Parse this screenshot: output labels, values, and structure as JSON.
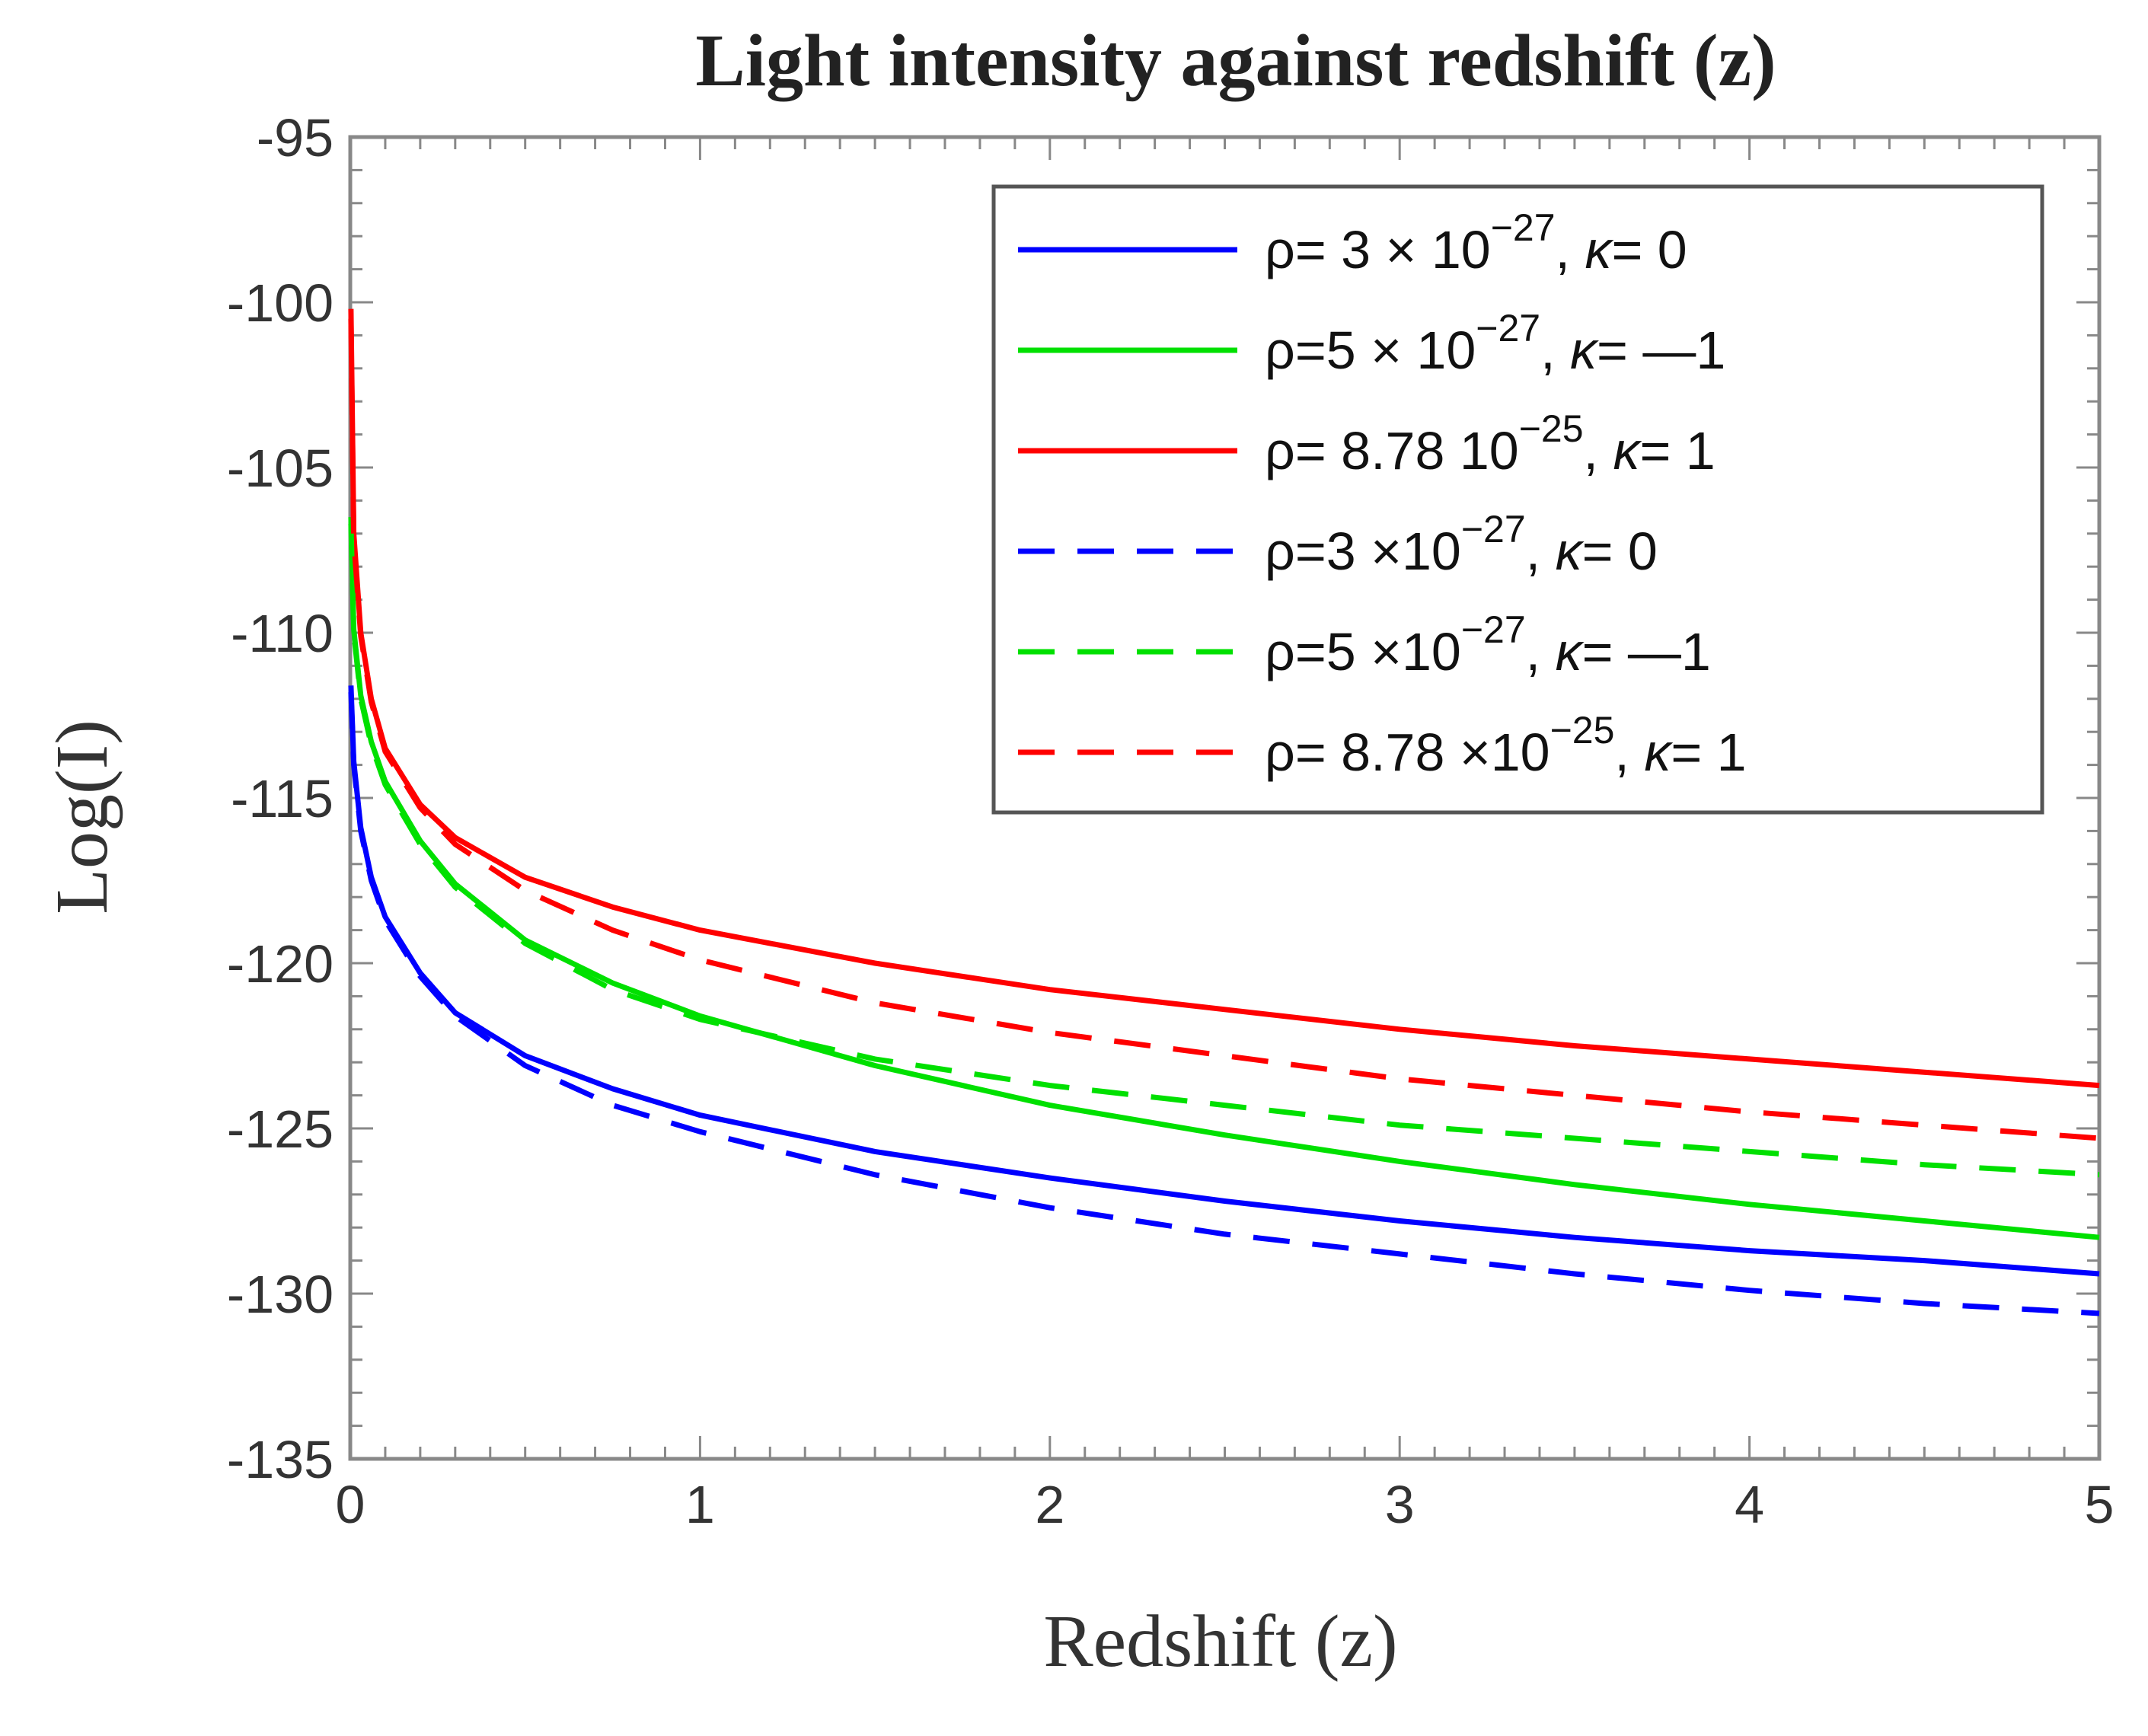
{
  "chart_data": {
    "type": "line",
    "title": "Light  intensity  against  redshift  (z)",
    "xlabel": "Redshift  (z)",
    "ylabel": "Log(I)",
    "xlim": [
      0,
      5
    ],
    "ylim": [
      -135,
      -95
    ],
    "xticks": [
      0,
      1,
      2,
      3,
      4,
      5
    ],
    "yticks": [
      -95,
      -100,
      -105,
      -110,
      -115,
      -120,
      -125,
      -130,
      -135
    ],
    "grid": false,
    "legend_position": "top-right",
    "series": [
      {
        "name_parts": {
          "pre": "ρ= 3 × 10",
          "exp": "−27",
          "post": ", ",
          "sym": "κ",
          "tail": "= 0"
        },
        "color": "#0000ff",
        "style": "solid",
        "points": [
          [
            0.002,
            -111.6
          ],
          [
            0.01,
            -113.9
          ],
          [
            0.03,
            -115.9
          ],
          [
            0.06,
            -117.4
          ],
          [
            0.1,
            -118.6
          ],
          [
            0.2,
            -120.3
          ],
          [
            0.3,
            -121.5
          ],
          [
            0.5,
            -122.8
          ],
          [
            0.75,
            -123.8
          ],
          [
            1.0,
            -124.6
          ],
          [
            1.5,
            -125.7
          ],
          [
            2.0,
            -126.5
          ],
          [
            2.5,
            -127.2
          ],
          [
            3.0,
            -127.8
          ],
          [
            3.5,
            -128.3
          ],
          [
            4.0,
            -128.7
          ],
          [
            4.5,
            -129.0
          ],
          [
            5.0,
            -129.4
          ]
        ]
      },
      {
        "name_parts": {
          "pre": "ρ=5 × 10",
          "exp": "−27",
          "post": ", ",
          "sym": "κ",
          "tail": "= —1"
        },
        "color": "#00e000",
        "style": "solid",
        "points": [
          [
            0.002,
            -106.5
          ],
          [
            0.01,
            -109.9
          ],
          [
            0.03,
            -111.9
          ],
          [
            0.06,
            -113.3
          ],
          [
            0.1,
            -114.5
          ],
          [
            0.2,
            -116.3
          ],
          [
            0.3,
            -117.6
          ],
          [
            0.5,
            -119.3
          ],
          [
            0.75,
            -120.6
          ],
          [
            1.0,
            -121.6
          ],
          [
            1.5,
            -123.1
          ],
          [
            2.0,
            -124.3
          ],
          [
            2.5,
            -125.2
          ],
          [
            3.0,
            -126.0
          ],
          [
            3.5,
            -126.7
          ],
          [
            4.0,
            -127.3
          ],
          [
            4.5,
            -127.8
          ],
          [
            5.0,
            -128.3
          ]
        ]
      },
      {
        "name_parts": {
          "pre": "ρ= 8.78 10",
          "exp": "−25",
          "post": ", ",
          "sym": "κ",
          "tail": "= 1"
        },
        "color": "#ff0000",
        "style": "solid",
        "points": [
          [
            0.002,
            -100.2
          ],
          [
            0.01,
            -107.0
          ],
          [
            0.03,
            -110.0
          ],
          [
            0.06,
            -112.0
          ],
          [
            0.1,
            -113.5
          ],
          [
            0.2,
            -115.2
          ],
          [
            0.3,
            -116.2
          ],
          [
            0.5,
            -117.4
          ],
          [
            0.75,
            -118.3
          ],
          [
            1.0,
            -119.0
          ],
          [
            1.5,
            -120.0
          ],
          [
            2.0,
            -120.8
          ],
          [
            2.5,
            -121.4
          ],
          [
            3.0,
            -122.0
          ],
          [
            3.5,
            -122.5
          ],
          [
            4.0,
            -122.9
          ],
          [
            4.5,
            -123.3
          ],
          [
            5.0,
            -123.7
          ]
        ]
      },
      {
        "name_parts": {
          "pre": "ρ=3 ×10",
          "exp": "−27",
          "post": ", ",
          "sym": "κ",
          "tail": "= 0"
        },
        "color": "#0000ff",
        "style": "dashed",
        "points": [
          [
            0.002,
            -111.8
          ],
          [
            0.01,
            -114.0
          ],
          [
            0.03,
            -116.0
          ],
          [
            0.06,
            -117.5
          ],
          [
            0.1,
            -118.7
          ],
          [
            0.2,
            -120.4
          ],
          [
            0.3,
            -121.6
          ],
          [
            0.5,
            -123.1
          ],
          [
            0.75,
            -124.3
          ],
          [
            1.0,
            -125.1
          ],
          [
            1.5,
            -126.4
          ],
          [
            2.0,
            -127.4
          ],
          [
            2.5,
            -128.2
          ],
          [
            3.0,
            -128.8
          ],
          [
            3.5,
            -129.4
          ],
          [
            4.0,
            -129.9
          ],
          [
            4.5,
            -130.3
          ],
          [
            5.0,
            -130.6
          ]
        ]
      },
      {
        "name_parts": {
          "pre": "ρ=5 ×10",
          "exp": "−27",
          "post": ", ",
          "sym": "κ",
          "tail": "= —1"
        },
        "color": "#00e000",
        "style": "dashed",
        "points": [
          [
            0.002,
            -106.7
          ],
          [
            0.01,
            -110.0
          ],
          [
            0.03,
            -112.0
          ],
          [
            0.06,
            -113.4
          ],
          [
            0.1,
            -114.6
          ],
          [
            0.2,
            -116.4
          ],
          [
            0.3,
            -117.7
          ],
          [
            0.5,
            -119.4
          ],
          [
            0.75,
            -120.8
          ],
          [
            1.0,
            -121.7
          ],
          [
            1.5,
            -122.9
          ],
          [
            2.0,
            -123.7
          ],
          [
            2.5,
            -124.3
          ],
          [
            3.0,
            -124.9
          ],
          [
            3.5,
            -125.3
          ],
          [
            4.0,
            -125.7
          ],
          [
            4.5,
            -126.1
          ],
          [
            5.0,
            -126.4
          ]
        ]
      },
      {
        "name_parts": {
          "pre": "ρ= 8.78 ×10",
          "exp": "−25",
          "post": ", ",
          "sym": "κ",
          "tail": "= 1"
        },
        "color": "#ff0000",
        "style": "dashed",
        "points": [
          [
            0.002,
            -100.5
          ],
          [
            0.01,
            -107.2
          ],
          [
            0.03,
            -110.1
          ],
          [
            0.06,
            -112.1
          ],
          [
            0.1,
            -113.6
          ],
          [
            0.2,
            -115.3
          ],
          [
            0.3,
            -116.4
          ],
          [
            0.5,
            -117.8
          ],
          [
            0.75,
            -119.0
          ],
          [
            1.0,
            -119.9
          ],
          [
            1.5,
            -121.2
          ],
          [
            2.0,
            -122.1
          ],
          [
            2.5,
            -122.8
          ],
          [
            3.0,
            -123.5
          ],
          [
            3.5,
            -124.0
          ],
          [
            4.0,
            -124.5
          ],
          [
            4.5,
            -124.9
          ],
          [
            5.0,
            -125.3
          ]
        ]
      }
    ]
  }
}
